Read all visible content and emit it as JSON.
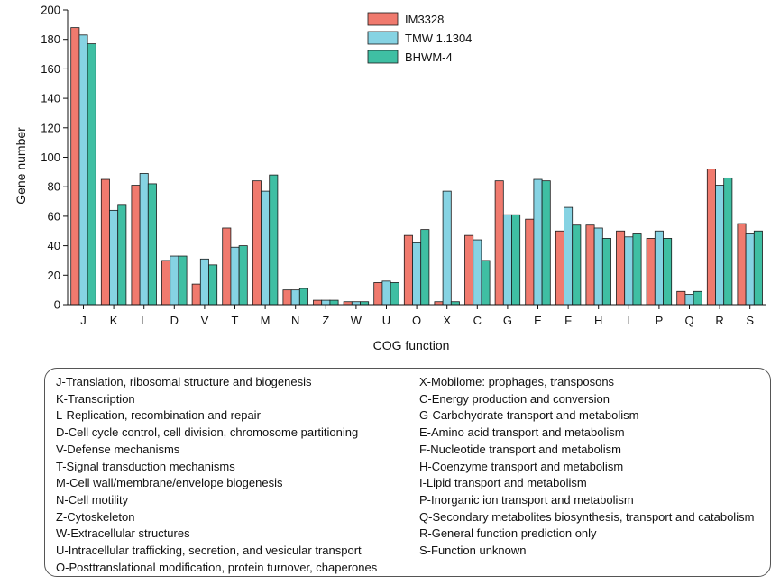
{
  "chart_data": {
    "type": "bar",
    "title": "",
    "xlabel": "COG function",
    "ylabel": "Gene number",
    "ylim": [
      0,
      200
    ],
    "yticks": [
      0,
      20,
      40,
      60,
      80,
      100,
      120,
      140,
      160,
      180,
      200
    ],
    "categories": [
      "J",
      "K",
      "L",
      "D",
      "V",
      "T",
      "M",
      "N",
      "Z",
      "W",
      "U",
      "O",
      "X",
      "C",
      "G",
      "E",
      "F",
      "H",
      "I",
      "P",
      "Q",
      "R",
      "S"
    ],
    "series": [
      {
        "name": "IM3328",
        "color": "#f07a6e",
        "values": [
          188,
          85,
          81,
          30,
          14,
          52,
          84,
          10,
          3,
          2,
          15,
          47,
          2,
          47,
          84,
          58,
          50,
          54,
          50,
          45,
          9,
          92,
          55
        ]
      },
      {
        "name": "TMW 1.1304",
        "color": "#86d3e3",
        "values": [
          183,
          64,
          89,
          33,
          31,
          39,
          77,
          10,
          3,
          2,
          16,
          42,
          77,
          44,
          61,
          85,
          66,
          52,
          46,
          50,
          7,
          81,
          48
        ]
      },
      {
        "name": "BHWM-4",
        "color": "#3fbfa3",
        "values": [
          177,
          68,
          82,
          33,
          27,
          40,
          88,
          11,
          3,
          2,
          15,
          51,
          2,
          30,
          61,
          84,
          54,
          45,
          48,
          45,
          9,
          86,
          50
        ]
      }
    ],
    "legend_position": "top-center"
  },
  "glossary": {
    "left": [
      "J-Translation, ribosomal structure and biogenesis",
      "K-Transcription",
      "L-Replication, recombination and repair",
      "D-Cell cycle control, cell division, chromosome partitioning",
      "V-Defense mechanisms",
      "T-Signal transduction mechanisms",
      "M-Cell wall/membrane/envelope biogenesis",
      "N-Cell motility",
      "Z-Cytoskeleton",
      "W-Extracellular structures",
      "U-Intracellular trafficking, secretion, and vesicular transport",
      "O-Posttranslational modification, protein turnover, chaperones"
    ],
    "right": [
      "X-Mobilome: prophages, transposons",
      "C-Energy production and conversion",
      "G-Carbohydrate transport and metabolism",
      "E-Amino acid transport and metabolism",
      "F-Nucleotide transport and metabolism",
      "H-Coenzyme transport and metabolism",
      "I-Lipid transport and metabolism",
      "P-Inorganic ion transport and metabolism",
      "Q-Secondary metabolites biosynthesis, transport and catabolism",
      "R-General function prediction only",
      "S-Function unknown"
    ]
  }
}
